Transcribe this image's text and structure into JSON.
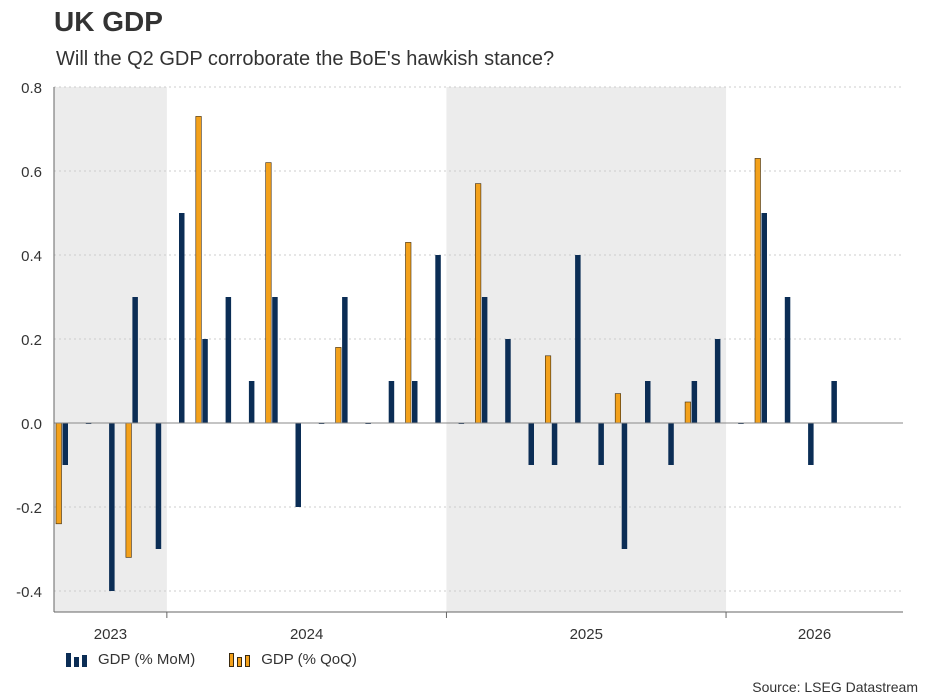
{
  "title": "UK GDP",
  "subtitle": "Will the Q2 GDP corroborate the BoE's hawkish stance?",
  "source": "Source: LSEG Datastream",
  "legend": {
    "mom": "GDP (% MoM)",
    "qoq": "GDP (% QoQ)"
  },
  "colors": {
    "mom": "#0b2d55",
    "qoq": "#f3a11b",
    "qoq_border": "#3a2a10",
    "shade": "#ececec",
    "grid": "#cccccc",
    "axis": "#666666"
  },
  "chart_data": {
    "type": "bar",
    "ylim": [
      -0.45,
      0.8
    ],
    "yticks": [
      "0.8",
      "0.6",
      "0.4",
      "0.2",
      "0.0",
      "-0.2",
      "-0.4"
    ],
    "ytick_values": [
      0.8,
      0.6,
      0.4,
      0.2,
      0.0,
      -0.2,
      -0.4
    ],
    "grid": true,
    "legend_position": "bottom-left",
    "year_labels": [
      "2023",
      "2024",
      "2025",
      "2026"
    ],
    "shaded_years": [
      "2023",
      "2025"
    ],
    "months_per_year": [
      5,
      12,
      12,
      5
    ],
    "series": [
      {
        "name": "GDP (% MoM)",
        "key": "mom",
        "values": [
          -0.1,
          0.0,
          -0.4,
          0.3,
          -0.3,
          0.5,
          0.2,
          0.3,
          0.1,
          0.3,
          -0.2,
          0.0,
          0.3,
          0.0,
          0.1,
          0.1,
          0.4,
          0.0,
          0.3,
          0.2,
          -0.1,
          -0.1,
          0.4,
          -0.1,
          -0.3,
          0.1,
          -0.1,
          0.1,
          0.2,
          0.0,
          0.5,
          0.3,
          -0.1,
          0.1
        ]
      },
      {
        "name": "GDP (% QoQ)",
        "key": "qoq",
        "values": [
          -0.24,
          null,
          null,
          -0.32,
          null,
          null,
          0.73,
          null,
          null,
          0.62,
          null,
          null,
          0.18,
          null,
          null,
          0.43,
          null,
          null,
          0.57,
          null,
          null,
          0.16,
          null,
          null,
          0.07,
          null,
          null,
          0.05,
          null,
          null,
          0.63,
          null,
          null,
          null
        ]
      }
    ]
  }
}
